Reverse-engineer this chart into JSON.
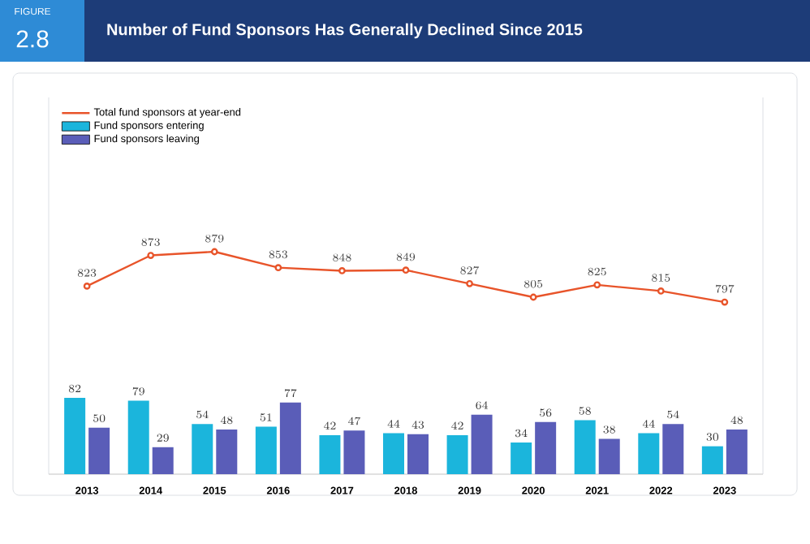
{
  "chart_data": {
    "type": "bar",
    "title": "Number of Fund Sponsors Has Generally Declined Since 2015",
    "annotations": [
      "FIGURE",
      "2.8"
    ],
    "categories": [
      "2013",
      "2014",
      "2015",
      "2016",
      "2017",
      "2018",
      "2019",
      "2020",
      "2021",
      "2022",
      "2023"
    ],
    "series": [
      {
        "name": "Total fund sponsors at year-end",
        "type": "line",
        "axis": "y2",
        "marker": "circle",
        "color": "#e8542a",
        "values": [
          823,
          873,
          879,
          853,
          848,
          849,
          827,
          805,
          825,
          815,
          797
        ]
      },
      {
        "name": "Fund sponsors entering",
        "color": "#1bb5dc",
        "values": [
          82,
          79,
          54,
          51,
          42,
          44,
          42,
          34,
          58,
          44,
          30
        ]
      },
      {
        "name": "Fund sponsors leaving",
        "color": "#5a5db8",
        "values": [
          50,
          29,
          48,
          77,
          47,
          43,
          64,
          56,
          38,
          54,
          48
        ]
      }
    ],
    "ylim": [
      0,
      405
    ],
    "y2lim": [
      517,
      1130
    ],
    "tick_labels": "x",
    "data_labels": true,
    "legend": "top left"
  }
}
